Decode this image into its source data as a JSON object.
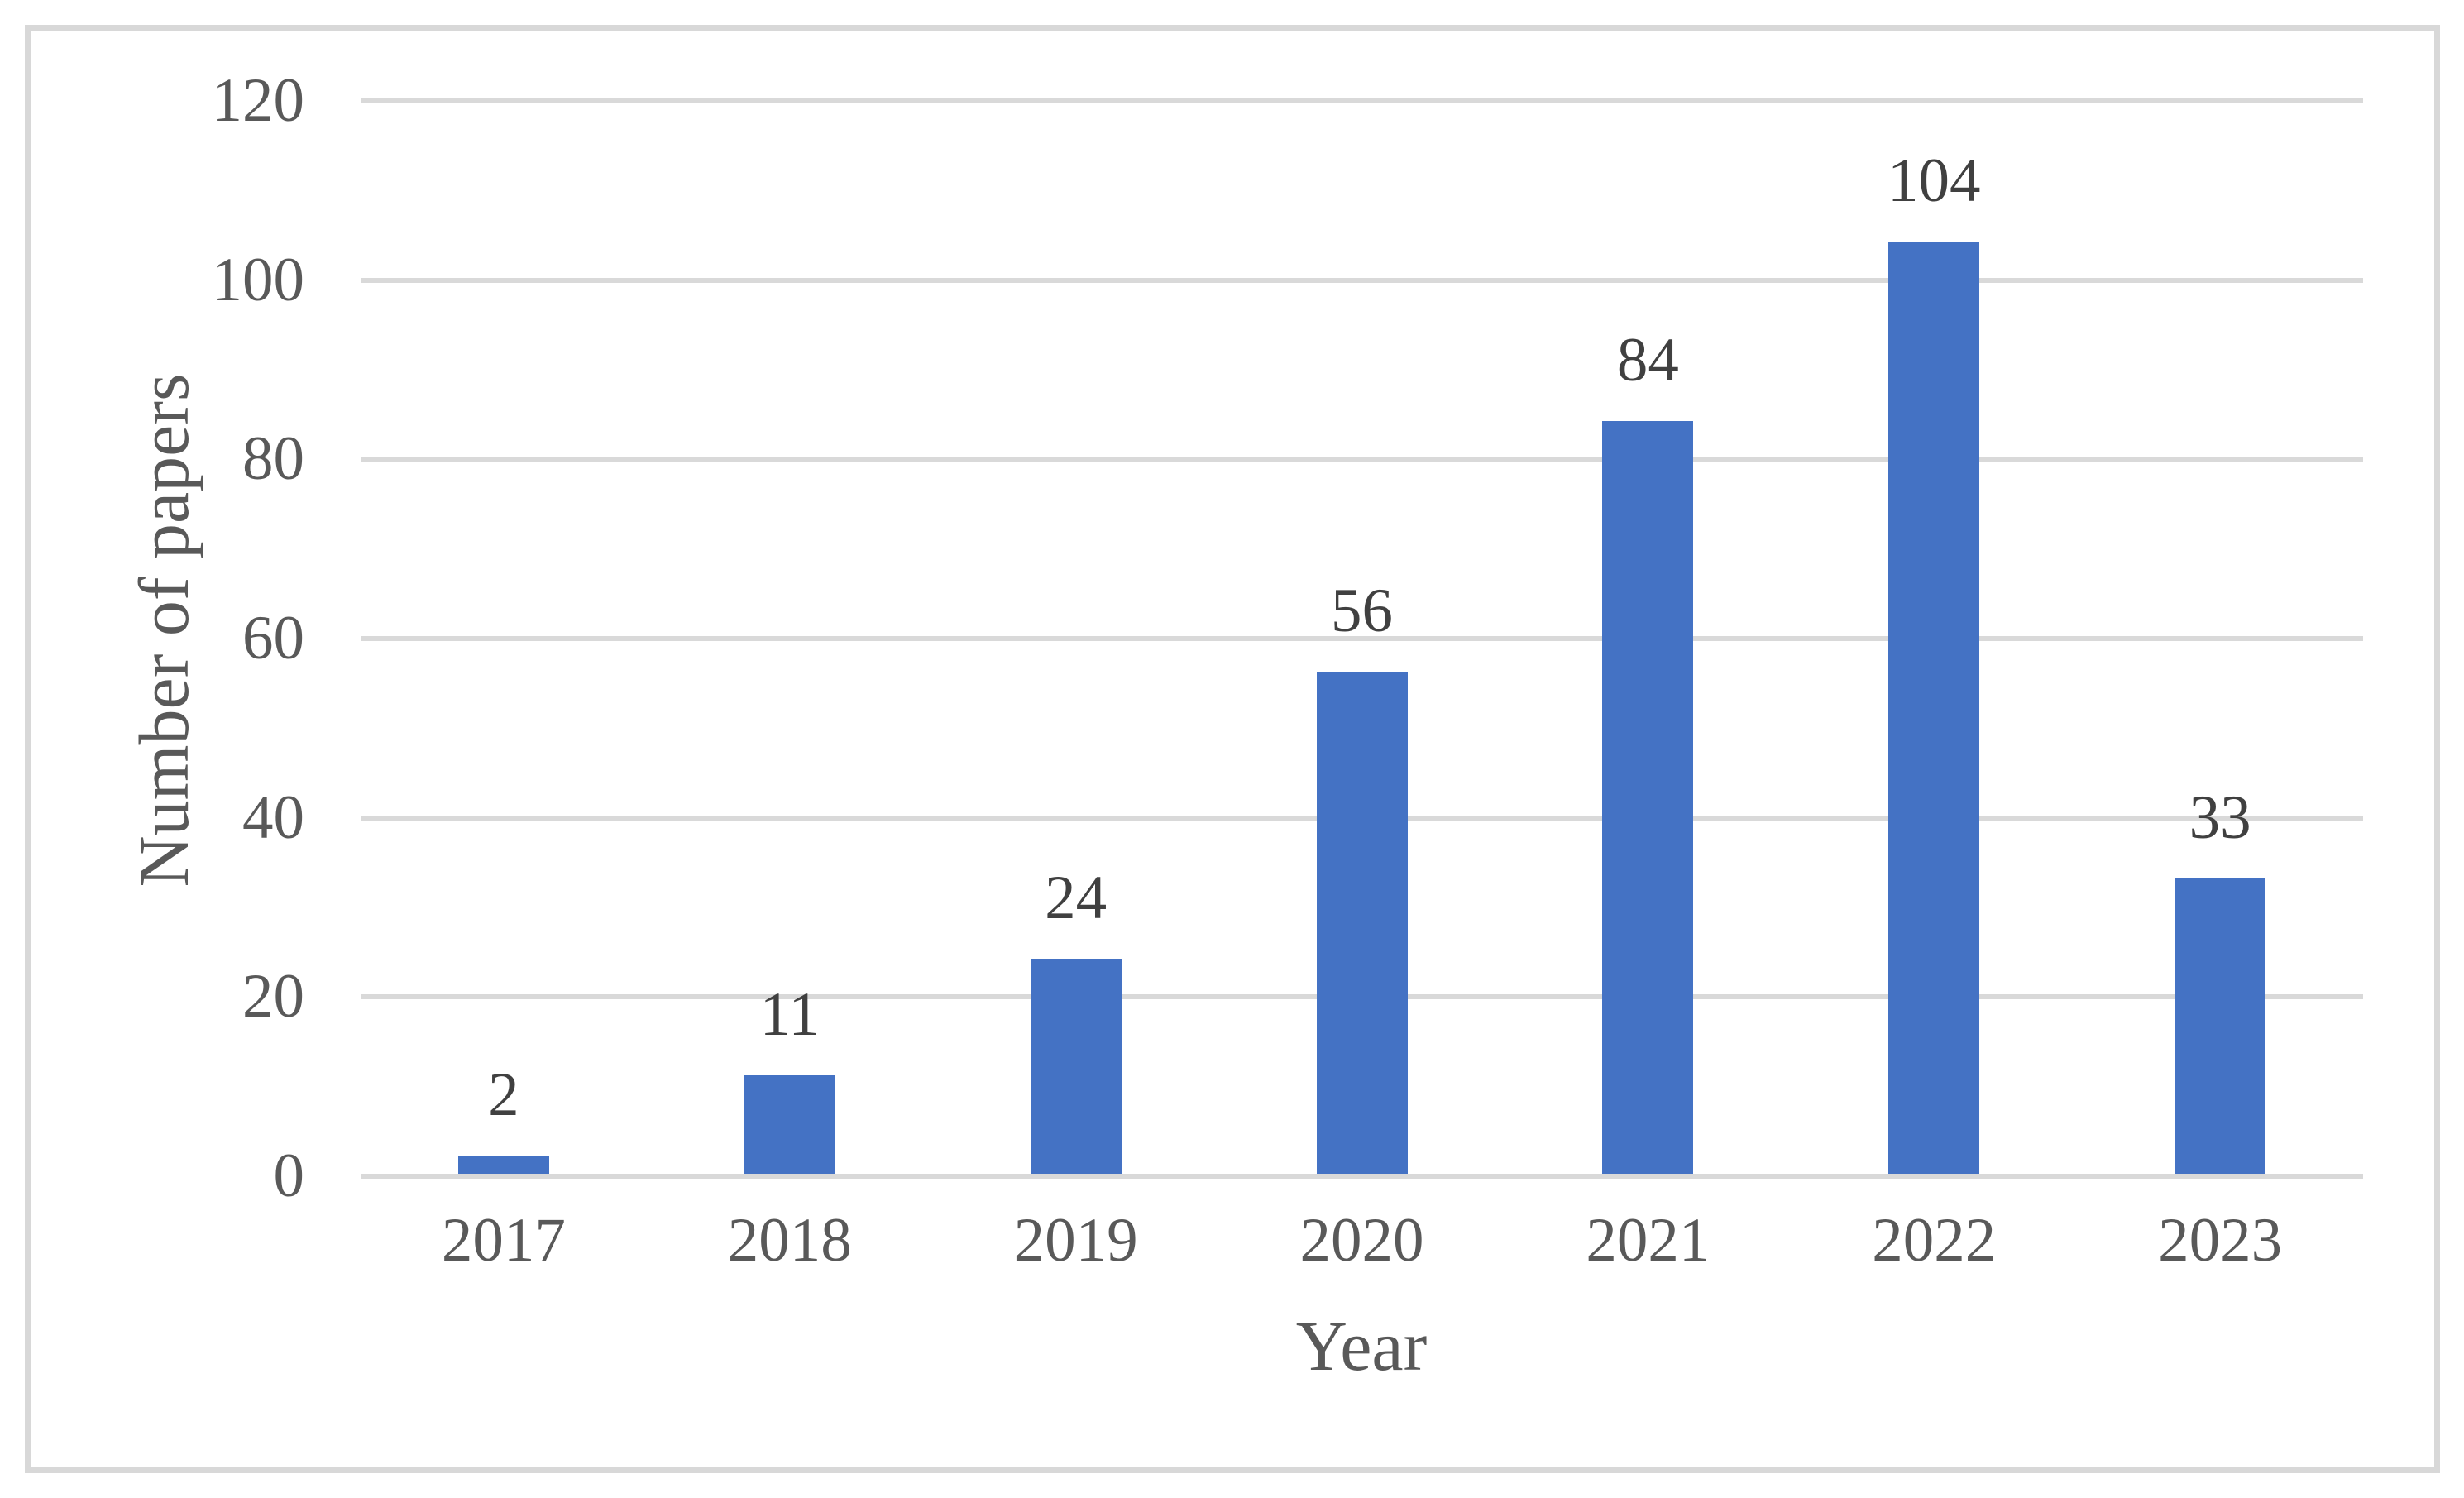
{
  "chart_data": {
    "type": "bar",
    "title": "",
    "categories": [
      "2017",
      "2018",
      "2019",
      "2020",
      "2021",
      "2022",
      "2023"
    ],
    "values": [
      2,
      11,
      24,
      56,
      84,
      104,
      33
    ],
    "xlabel": "Year",
    "ylabel": "Number of papers",
    "ylim": [
      0,
      120
    ],
    "yticks": [
      0,
      20,
      40,
      60,
      80,
      100,
      120
    ],
    "grid": true,
    "legend_position": "none",
    "data_labels_shown": true,
    "colors": {
      "bar": "#4472c4",
      "gridline": "#d9d9d9",
      "axis_text": "#595959",
      "data_label": "#404040",
      "frame_border": "#d8d8d8",
      "background": "#ffffff"
    }
  }
}
